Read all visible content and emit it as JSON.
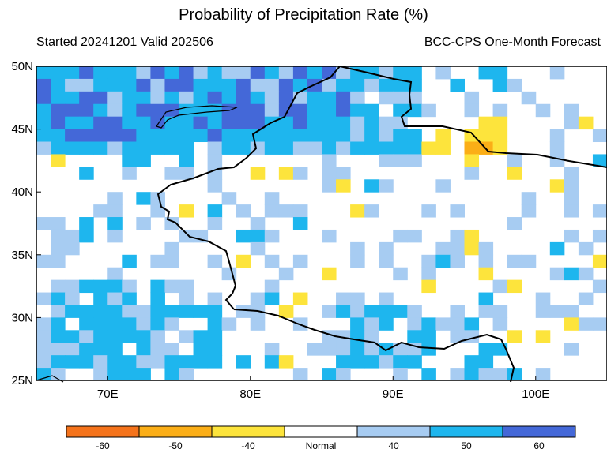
{
  "header": {
    "title": "Probability of Precipitation Rate (%)",
    "started_valid": "Started 20241201  Valid 202506",
    "source": "BCC-CPS One-Month Forecast"
  },
  "map": {
    "lon_range": [
      65,
      105
    ],
    "lat_range": [
      25,
      50
    ],
    "y_tick_labels": [
      "50N",
      "45N",
      "40N",
      "35N",
      "30N",
      "25N"
    ],
    "x_tick_labels": [
      "70E",
      "80E",
      "90E",
      "100E"
    ],
    "palette": {
      "dry60": "#f5731b",
      "dry50": "#fbae17",
      "dry40": "#fde43c",
      "wet40": "#a7ccf2",
      "wet50": "#1eb6ee",
      "wet60": "#4468d8"
    },
    "grid_resolution_deg": 1,
    "category_rows": [
      "........................................",
      "........................................",
      "........................................",
      "........................................",
      "........................................"
    ]
  },
  "colorbar": {
    "labels": [
      "-60",
      "-50",
      "-40",
      "Normal",
      "40",
      "50",
      "60"
    ],
    "colors": [
      "#f5731b",
      "#fbae17",
      "#fde43c",
      "#ffffff",
      "#a7ccf2",
      "#1eb6ee",
      "#4468d8"
    ]
  }
}
